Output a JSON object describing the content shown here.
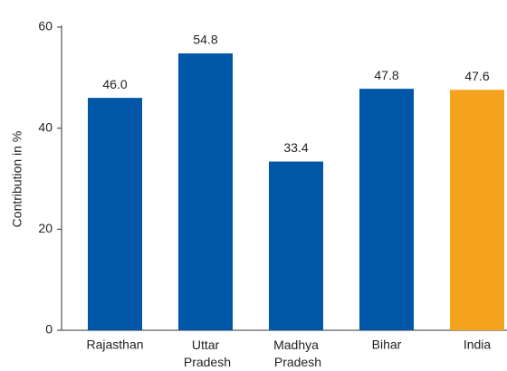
{
  "chart_data": {
    "type": "bar",
    "y_label": "Contribution in %",
    "categories": [
      "Rajasthan",
      "Uttar Pradesh",
      "Madhya Pradesh",
      "Bihar",
      "India"
    ],
    "values": [
      46.0,
      54.8,
      33.4,
      47.8,
      47.6
    ],
    "value_labels": [
      "46.0",
      "54.8",
      "33.4",
      "47.8",
      "47.6"
    ],
    "colors": [
      "#0057a8",
      "#0057a8",
      "#0057a8",
      "#0057a8",
      "#f5a21d"
    ],
    "ylim": [
      0,
      60
    ],
    "yticks": [
      0,
      20,
      40,
      60
    ],
    "grid": false
  }
}
